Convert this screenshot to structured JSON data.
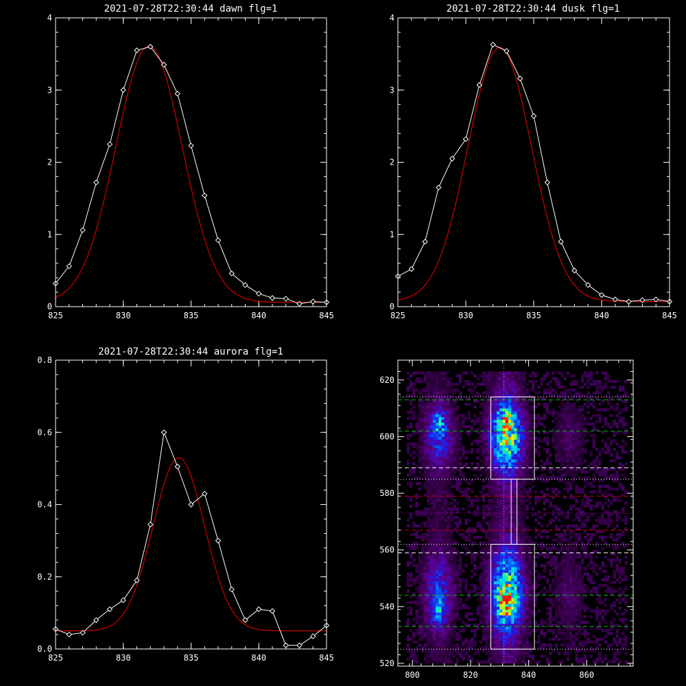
{
  "chart_data": [
    {
      "type": "line",
      "title": "2021-07-28T22:30:44 dawn flg=1",
      "xlim": [
        825,
        845
      ],
      "ylim": [
        0,
        4
      ],
      "xticks": [
        825,
        830,
        835,
        840,
        845
      ],
      "yticks": [
        0,
        1,
        2,
        3,
        4
      ],
      "colors": {
        "data": "#ffffff",
        "fit": "#d40000"
      },
      "x": [
        825,
        826,
        827,
        828,
        829,
        830,
        831,
        832,
        833,
        834,
        835,
        836,
        837,
        838,
        839,
        840,
        841,
        842,
        843,
        844,
        845
      ],
      "data": [
        0.32,
        0.56,
        1.06,
        1.72,
        2.25,
        3.0,
        3.55,
        3.6,
        3.35,
        2.95,
        2.23,
        1.54,
        0.92,
        0.46,
        0.3,
        0.18,
        0.12,
        0.11,
        0.04,
        0.07,
        0.06
      ],
      "fit": {
        "amplitude": 3.55,
        "center": 831.9,
        "sigma": 2.45,
        "offset": 0.06
      }
    },
    {
      "type": "line",
      "title": "2021-07-28T22:30:44 dusk flg=1",
      "xlim": [
        825,
        845
      ],
      "ylim": [
        0,
        4
      ],
      "xticks": [
        825,
        830,
        835,
        840,
        845
      ],
      "yticks": [
        0,
        1,
        2,
        3,
        4
      ],
      "colors": {
        "data": "#ffffff",
        "fit": "#d40000"
      },
      "x": [
        825,
        826,
        827,
        828,
        829,
        830,
        831,
        832,
        833,
        834,
        835,
        836,
        837,
        838,
        839,
        840,
        841,
        842,
        843,
        844,
        845
      ],
      "data": [
        0.42,
        0.52,
        0.9,
        1.65,
        2.05,
        2.32,
        3.07,
        3.63,
        3.54,
        3.16,
        2.64,
        1.72,
        0.9,
        0.5,
        0.3,
        0.16,
        0.1,
        0.07,
        0.09,
        0.1,
        0.07
      ],
      "fit": {
        "amplitude": 3.52,
        "center": 832.5,
        "sigma": 2.35,
        "offset": 0.07
      }
    },
    {
      "type": "line",
      "title": "2021-07-28T22:30:44 aurora flg=1",
      "xlim": [
        825,
        845
      ],
      "ylim": [
        0,
        0.8
      ],
      "xticks": [
        825,
        830,
        835,
        840,
        845
      ],
      "yticks": [
        0.0,
        0.2,
        0.4,
        0.6,
        0.8
      ],
      "colors": {
        "data": "#ffffff",
        "fit": "#d40000"
      },
      "x": [
        825,
        826,
        827,
        828,
        829,
        830,
        831,
        832,
        833,
        834,
        835,
        836,
        837,
        838,
        839,
        840,
        841,
        842,
        843,
        844,
        845
      ],
      "data": [
        0.055,
        0.04,
        0.045,
        0.08,
        0.11,
        0.135,
        0.19,
        0.345,
        0.6,
        0.505,
        0.4,
        0.43,
        0.3,
        0.165,
        0.08,
        0.11,
        0.105,
        0.01,
        0.01,
        0.035,
        0.065
      ],
      "fit": {
        "amplitude": 0.48,
        "center": 834.1,
        "sigma": 1.9,
        "offset": 0.05
      }
    },
    {
      "type": "heatmap",
      "title": "",
      "xlim": [
        795,
        876
      ],
      "ylim": [
        519,
        627
      ],
      "xticks": [
        800,
        820,
        840,
        860
      ],
      "yticks": [
        520,
        540,
        560,
        580,
        600,
        620
      ],
      "colors": {
        "box": "#ffffff",
        "cyan": "#00d8ff",
        "yellow": "#ffff00",
        "red": "#ff2000"
      },
      "columns": [
        {
          "center": 809,
          "width": 4.2,
          "intensity": 0.55
        },
        {
          "center": 832.5,
          "width": 4.5,
          "intensity": 1.0
        },
        {
          "center": 854,
          "width": 4.0,
          "intensity": 0.25
        }
      ],
      "bands": [
        {
          "center": 600,
          "sigma": 8.5,
          "gain": 1.0
        },
        {
          "center": 545,
          "sigma": 10.0,
          "gain": 1.0
        }
      ],
      "hot_spots": [
        {
          "x": 832,
          "y": 606
        },
        {
          "x": 832,
          "y": 540
        },
        {
          "x": 809,
          "y": 605
        },
        {
          "x": 809,
          "y": 538
        }
      ],
      "boxes": [
        {
          "x0": 827,
          "x1": 842,
          "y0": 585,
          "y1": 614
        },
        {
          "x0": 834,
          "x1": 836,
          "y0": 562,
          "y1": 585
        },
        {
          "x0": 827,
          "x1": 842,
          "y0": 525,
          "y1": 562
        }
      ],
      "vline": {
        "x": 831.5,
        "color": "#b0b0b0"
      },
      "hlines": [
        {
          "y": 614,
          "color": "#ffffff",
          "style": "dotted"
        },
        {
          "y": 613,
          "color": "#00c000",
          "style": "dashed"
        },
        {
          "y": 602,
          "color": "#00c000",
          "style": "dashed"
        },
        {
          "y": 589,
          "color": "#ffffff",
          "style": "dashed"
        },
        {
          "y": 585,
          "color": "#ffffff",
          "style": "dotted"
        },
        {
          "y": 579,
          "color": "#d40000",
          "style": "dashed"
        },
        {
          "y": 573,
          "color": "#d000d0",
          "style": "dotted"
        },
        {
          "y": 567,
          "color": "#d40000",
          "style": "dashed"
        },
        {
          "y": 562,
          "color": "#ffffff",
          "style": "dotted"
        },
        {
          "y": 559,
          "color": "#ffffff",
          "style": "dashed"
        },
        {
          "y": 544,
          "color": "#00c000",
          "style": "dashed"
        },
        {
          "y": 533,
          "color": "#00c000",
          "style": "dashed"
        },
        {
          "y": 525,
          "color": "#ffffff",
          "style": "dotted"
        }
      ]
    }
  ]
}
